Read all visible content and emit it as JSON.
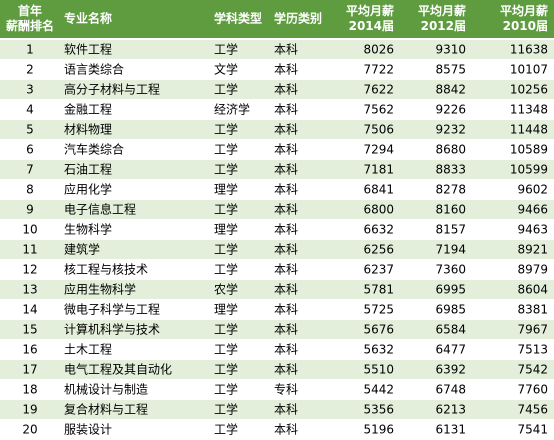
{
  "table": {
    "header": [
      [
        "首年",
        "薪酬排名"
      ],
      [
        "专业名称"
      ],
      [
        "学科类型"
      ],
      [
        "学历类别"
      ],
      [
        "平均月薪",
        "2014届"
      ],
      [
        "平均月薪",
        "2012届"
      ],
      [
        "平均月薪",
        "2010届"
      ]
    ],
    "rows": [
      [
        1,
        "软件工程",
        "工学",
        "本科",
        8026,
        9310,
        11638
      ],
      [
        2,
        "语言类综合",
        "文学",
        "本科",
        7722,
        8575,
        10107
      ],
      [
        3,
        "高分子材料与工程",
        "工学",
        "本科",
        7622,
        8842,
        10256
      ],
      [
        4,
        "金融工程",
        "经济学",
        "本科",
        7562,
        9226,
        11348
      ],
      [
        5,
        "材料物理",
        "工学",
        "本科",
        7506,
        9232,
        11448
      ],
      [
        6,
        "汽车类综合",
        "工学",
        "本科",
        7294,
        8680,
        10589
      ],
      [
        7,
        "石油工程",
        "工学",
        "本科",
        7181,
        8833,
        10599
      ],
      [
        8,
        "应用化学",
        "理学",
        "本科",
        6841,
        8278,
        9602
      ],
      [
        9,
        "电子信息工程",
        "工学",
        "本科",
        6800,
        8160,
        9466
      ],
      [
        10,
        "生物科学",
        "理学",
        "本科",
        6632,
        8157,
        9463
      ],
      [
        11,
        "建筑学",
        "工学",
        "本科",
        6256,
        7194,
        8921
      ],
      [
        12,
        "核工程与核技术",
        "工学",
        "本科",
        6237,
        7360,
        8979
      ],
      [
        13,
        "应用生物科学",
        "农学",
        "本科",
        5781,
        6995,
        8604
      ],
      [
        14,
        "微电子科学与工程",
        "理学",
        "本科",
        5725,
        6985,
        8381
      ],
      [
        15,
        "计算机科学与技术",
        "工学",
        "本科",
        5676,
        6584,
        7967
      ],
      [
        16,
        "土木工程",
        "工学",
        "本科",
        5632,
        6477,
        7513
      ],
      [
        17,
        "电气工程及其自动化",
        "工学",
        "本科",
        5510,
        6392,
        7542
      ],
      [
        18,
        "机械设计与制造",
        "工学",
        "专科",
        5442,
        6748,
        7760
      ],
      [
        19,
        "复合材料与工程",
        "工学",
        "本科",
        5356,
        6213,
        7456
      ],
      [
        20,
        "服装设计",
        "工学",
        "本科",
        5196,
        6131,
        7541
      ]
    ]
  }
}
